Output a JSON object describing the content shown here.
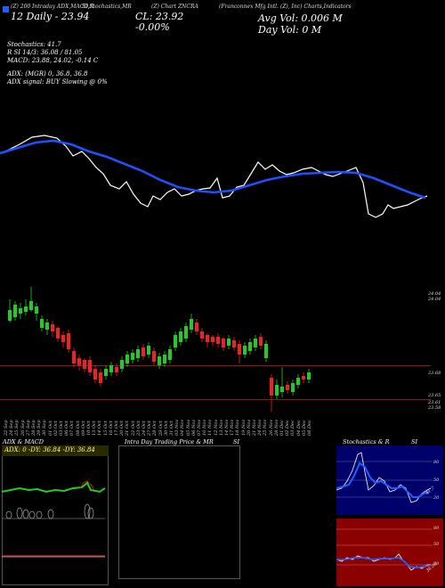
{
  "header": {
    "source_line": "(Z) 200 Intraday ADX,MACD,R",
    "mid_line": "SI,Stochastics,MR",
    "chart_line": "(Z) Chart ZNCRA",
    "company_line": "(Franconnex Mfg Intl. (Z), Inc) Charts,Indicators",
    "date_line": "12 Daily - 23.94",
    "cl_line": "CL: 23.92",
    "pct_line": "-0.00%",
    "avg_vol": "Avg Vol: 0.006   M",
    "day_vol": "Day Vol: 0   M"
  },
  "indicators": {
    "stochastics": "Stochastics: 41.7",
    "rsi": "R          SI 14/3: 36.08  /  81.05",
    "macd": "MACD: 23.88,  24.02,  -0.14   C",
    "adx": "ADX:                (MGR) 0,  36.8,  36.8",
    "adx_signal": "ADX  signal:                     BUY Slowing @ 0%"
  },
  "price_labels": {
    "top_a": "24.04",
    "top_b": "24.04",
    "mid": "23.68",
    "low_a": "23.65",
    "low_b": "23.61",
    "low_c": "23.58"
  },
  "dates": [
    "22 Sep",
    "24 Sep",
    "25 Sep",
    "26 Sep",
    "27 Sep",
    "28 Sep",
    "29 Sep",
    "30 Sep",
    "01 Oct",
    "02 Oct",
    "03 Oct",
    "06 Oct",
    "07 Oct",
    "08 Oct",
    "09 Oct",
    "10 Oct",
    "13 Oct",
    "14 Oct",
    "15 Oct",
    "16 Oct",
    "17 Oct",
    "20 Oct",
    "21 Oct",
    "22 Oct",
    "23 Oct",
    "24 Oct",
    "27 Oct",
    "28 Oct",
    "29 Oct",
    "30 Oct",
    "31 Oct",
    "03 Nov",
    "04 Nov",
    "05 Nov",
    "06 Nov",
    "07 Nov",
    "10 Nov",
    "11 Nov",
    "12 Nov",
    "13 Nov",
    "14 Nov",
    "17 Nov",
    "18 Nov",
    "19 Nov",
    "20 Nov",
    "21 Nov",
    "24 Nov",
    "25 Nov",
    "26 Nov",
    "28 Nov",
    "01 Dec",
    "02 Dec",
    "03 Dec",
    "04 Dec",
    "05 Dec",
    "08 Dec"
  ],
  "panels": {
    "adx_title": "ADX  & MACD",
    "adx_values": "ADX: 0  -DY: 36.84  -DY: 36.84",
    "intraday_title": "Intra  Day Trading Price  & MR",
    "intraday_si": "SI",
    "stoch_title": "Stochastics & R",
    "stoch_si": "SI",
    "stoch_ticks": [
      "80",
      "50",
      "20"
    ],
    "stoch_value": "41.7",
    "rsi_ticks": [
      "80",
      "50",
      "20"
    ],
    "rsi_value": "36.08"
  },
  "colors": {
    "ema_line": "#1f4fff",
    "price_line": "#ffffff",
    "up_candle": "#22cc22",
    "down_candle": "#ee2222",
    "rsi_panel_bg": "#8b0000",
    "stoch_panel_bg": "#00006a"
  },
  "icons": {
    "legend": "blue-square-icon"
  }
}
